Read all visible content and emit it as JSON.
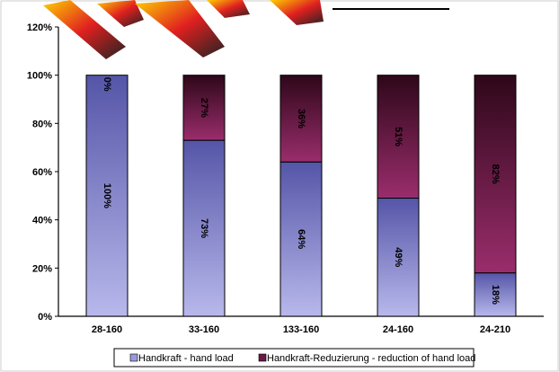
{
  "chart_data": {
    "type": "bar",
    "stacked": true,
    "percent_stacked": true,
    "categories": [
      "28-160",
      "33-160",
      "133-160",
      "24-160",
      "24-210"
    ],
    "series": [
      {
        "name": "Handkraft - hand load",
        "values": [
          100,
          73,
          64,
          49,
          18
        ],
        "labels": [
          "100%",
          "73%",
          "64%",
          "49%",
          "18%"
        ],
        "color_light": "#b3b3e6",
        "color_dark": "#5a5aa8"
      },
      {
        "name": "Handkraft-Reduzierung - reduction of hand load",
        "values": [
          0,
          27,
          36,
          51,
          82
        ],
        "labels": [
          "0%",
          "27%",
          "36%",
          "51%",
          "82%"
        ],
        "color_light": "#8c2a63",
        "color_dark": "#3a0a24"
      }
    ],
    "y_ticks": [
      "0%",
      "20%",
      "40%",
      "60%",
      "80%",
      "100%",
      "120%"
    ],
    "ylim": [
      0,
      120
    ],
    "title": "",
    "xlabel": "",
    "ylabel": "",
    "legend_position": "bottom",
    "grid": false
  }
}
